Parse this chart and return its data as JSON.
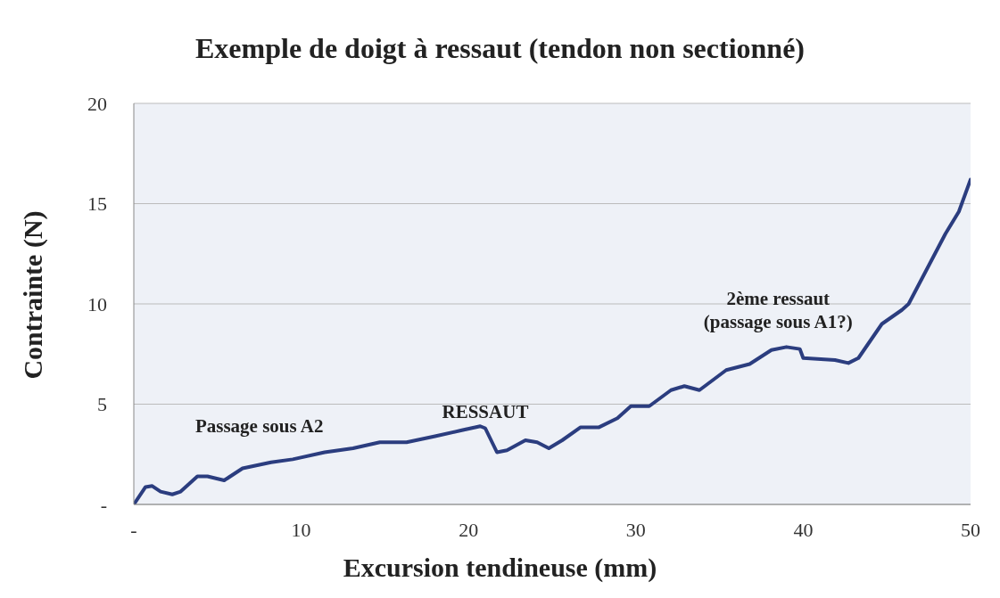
{
  "chart_data": {
    "type": "line",
    "title": "Exemple de doigt à ressaut (tendon non sectionné)",
    "xlabel": "Excursion tendineuse (mm)",
    "ylabel": "Contrainte (N)",
    "x": [
      0,
      0.7,
      1.1,
      1.6,
      2.3,
      2.8,
      3.8,
      4.4,
      5.4,
      6.5,
      8.2,
      9.5,
      11.4,
      13.1,
      14.7,
      16.3,
      18,
      19.6,
      20.7,
      21,
      21.7,
      22.3,
      23.4,
      24.1,
      24.8,
      25.6,
      26.7,
      27.8,
      28.9,
      29.7,
      30.8,
      32.1,
      32.9,
      33.8,
      35.4,
      36.8,
      38.1,
      39,
      39.8,
      40,
      41.9,
      42.7,
      43.3,
      44.7,
      45.9,
      46.3,
      48.5,
      49.3,
      50
    ],
    "series": [
      {
        "color": "#2b3d7f",
        "values": [
          0,
          0.87,
          0.92,
          0.64,
          0.5,
          0.64,
          1.4,
          1.4,
          1.2,
          1.8,
          2.1,
          2.25,
          2.6,
          2.8,
          3.1,
          3.1,
          3.4,
          3.7,
          3.9,
          3.8,
          2.6,
          2.7,
          3.2,
          3.1,
          2.8,
          3.2,
          3.85,
          3.85,
          4.3,
          4.9,
          4.9,
          5.7,
          5.9,
          5.7,
          6.7,
          7.0,
          7.7,
          7.85,
          7.75,
          7.3,
          7.2,
          7.05,
          7.3,
          9.0,
          9.7,
          10,
          13.5,
          14.6,
          16.2
        ]
      }
    ],
    "xlim": [
      0,
      50
    ],
    "xticks": [
      {
        "value": 0,
        "label": "-"
      },
      10,
      20,
      30,
      40,
      50
    ],
    "ylim": [
      0,
      20
    ],
    "yticks": [
      {
        "value": 0,
        "label": "-"
      },
      5,
      10,
      15,
      20
    ],
    "grid": "y",
    "legend": false,
    "marker": "none",
    "line_style": "solid",
    "annotations": [
      "Passage sous A2",
      "RESSAUT",
      "2ème ressaut\n(passage sous A1?)"
    ]
  }
}
